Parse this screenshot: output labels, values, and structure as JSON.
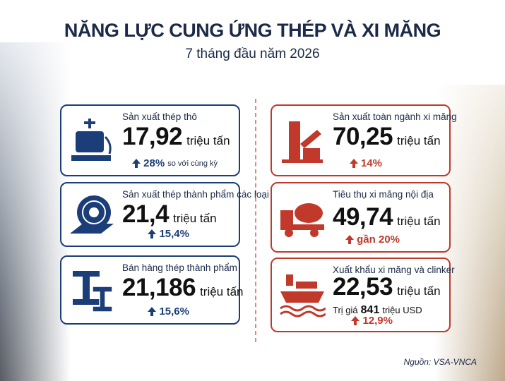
{
  "header": {
    "title": "NĂNG LỰC CUNG ỨNG THÉP VÀ XI MĂNG",
    "subtitle": "7 tháng đầu năm 2026"
  },
  "steel": [
    {
      "label": "Sản xuất thép thô",
      "value": "17,92",
      "unit": "triệu tấn",
      "change": "28%",
      "change_note": "so với cùng kỳ"
    },
    {
      "label": "Sản xuất thép thành phẩm các loại",
      "value": "21,4",
      "unit": "triệu tấn",
      "change": "15,4%"
    },
    {
      "label": "Bán hàng thép thành phẩm",
      "value": "21,186",
      "unit": "triệu tấn",
      "change": "15,6%"
    }
  ],
  "cement": [
    {
      "label": "Sản xuất toàn ngành xi măng",
      "value": "70,25",
      "unit": "triệu tấn",
      "change": "14%"
    },
    {
      "label": "Tiêu thụ xi măng nội địa",
      "value": "49,74",
      "unit": "triệu tấn",
      "change": "gần 20%"
    },
    {
      "label": "Xuất khẩu xi măng và clinker",
      "value": "22,53",
      "unit": "triệu tấn",
      "extra_prefix": "Trị giá",
      "extra_value": "841",
      "extra_unit": "triệu USD",
      "change": "12,9%"
    }
  ],
  "source": "Nguồn: VSA-VNCA"
}
